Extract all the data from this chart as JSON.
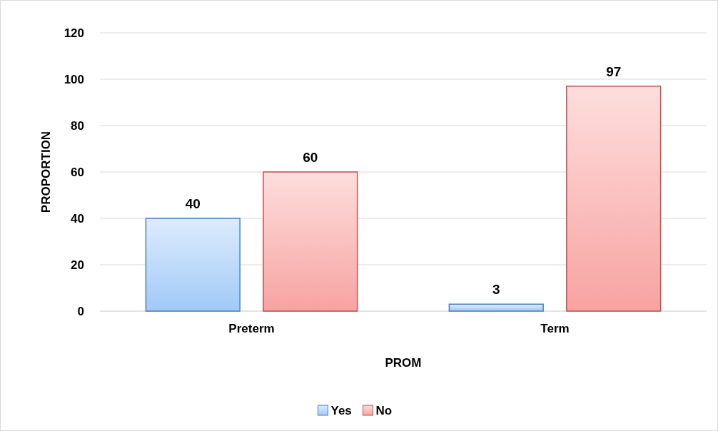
{
  "chart_data": {
    "type": "bar",
    "categories": [
      "Preterm",
      "Term"
    ],
    "series": [
      {
        "name": "Yes",
        "color": "#4a7ebb",
        "values": [
          40,
          3
        ]
      },
      {
        "name": "No",
        "color": "#c0504d",
        "values": [
          60,
          97
        ]
      }
    ],
    "xlabel": "PROM",
    "ylabel": "PROPORTION",
    "ylim": [
      0,
      120
    ],
    "yticks": [
      0,
      20,
      40,
      60,
      80,
      100,
      120
    ],
    "grid": "y",
    "legend": "bottom",
    "data_labels": true
  }
}
